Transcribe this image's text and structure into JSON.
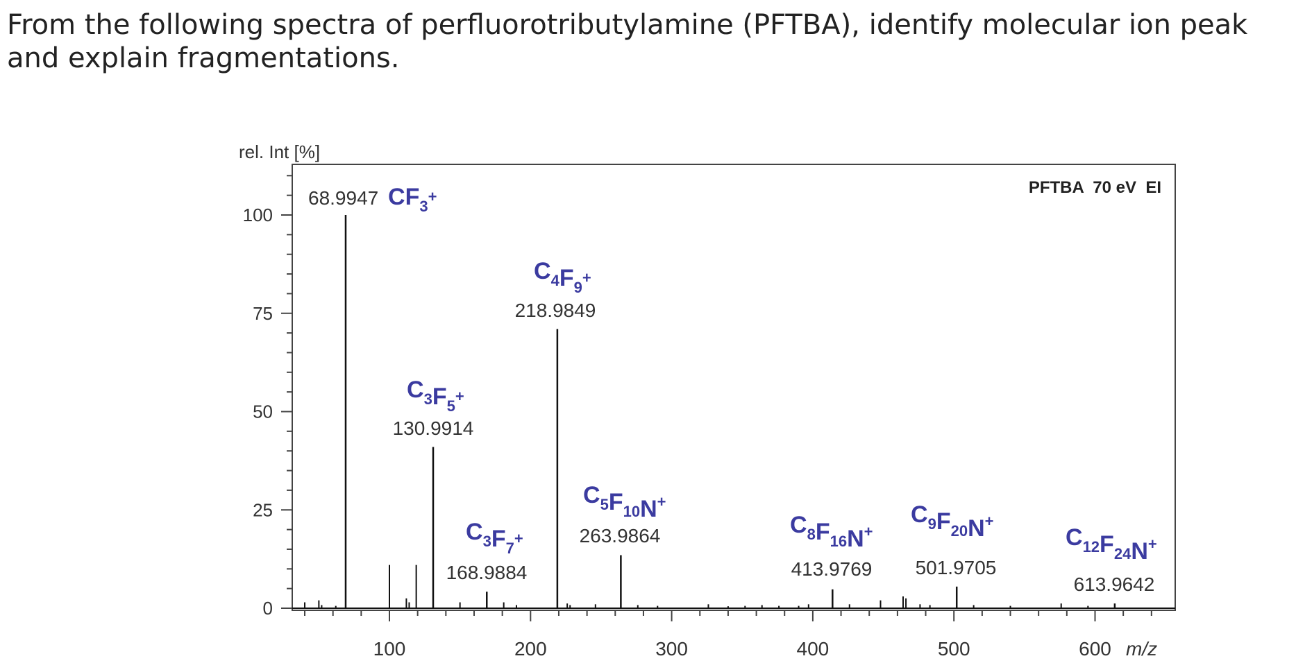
{
  "question": {
    "text": "From the  following spectra of perfluorotributylamine (PFTBA), identify molecular ion peak and explain fragmentations."
  },
  "colors": {
    "axis": "#444444",
    "bars": "#111111",
    "ion_label": "#3b3ba0"
  },
  "chart_data": {
    "type": "bar",
    "title": "",
    "annotation": "PFTBA  70 eV  EI",
    "xlabel": "m/z",
    "ylabel": "rel. Int [%]",
    "xlim": [
      30,
      640
    ],
    "ylim": [
      0,
      110
    ],
    "xticks": [
      100,
      200,
      300,
      400,
      500,
      600
    ],
    "yticks": [
      0,
      25,
      50,
      75,
      100
    ],
    "grid": false,
    "labeled_peaks": [
      {
        "mz": 68.9947,
        "intensity": 100,
        "mass_label": "68.9947",
        "ion": {
          "base": "CF",
          "atoms": [
            [
              "C",
              ""
            ],
            [
              "F",
              "3"
            ]
          ],
          "charge": "+"
        }
      },
      {
        "mz": 130.9914,
        "intensity": 41,
        "mass_label": "130.9914",
        "ion": {
          "atoms": [
            [
              "C",
              "3"
            ],
            [
              "F",
              "5"
            ]
          ],
          "charge": "+"
        }
      },
      {
        "mz": 168.9884,
        "intensity": 4.2,
        "mass_label": "168.9884",
        "ion": {
          "atoms": [
            [
              "C",
              "3"
            ],
            [
              "F",
              "7"
            ]
          ],
          "charge": "+"
        }
      },
      {
        "mz": 218.9849,
        "intensity": 71,
        "mass_label": "218.9849",
        "ion": {
          "atoms": [
            [
              "C",
              "4"
            ],
            [
              "F",
              "9"
            ]
          ],
          "charge": "+"
        }
      },
      {
        "mz": 263.9864,
        "intensity": 13.5,
        "mass_label": "263.9864",
        "ion": {
          "atoms": [
            [
              "C",
              "5"
            ],
            [
              "F",
              "10"
            ],
            [
              "N",
              ""
            ]
          ],
          "charge": "+"
        }
      },
      {
        "mz": 413.9769,
        "intensity": 4.8,
        "mass_label": "413.9769",
        "ion": {
          "atoms": [
            [
              "C",
              "8"
            ],
            [
              "F",
              "16"
            ],
            [
              "N",
              ""
            ]
          ],
          "charge": "+"
        }
      },
      {
        "mz": 501.9705,
        "intensity": 5.5,
        "mass_label": "501.9705",
        "ion": {
          "atoms": [
            [
              "C",
              "9"
            ],
            [
              "F",
              "20"
            ],
            [
              "N",
              ""
            ]
          ],
          "charge": "+"
        }
      },
      {
        "mz": 613.9642,
        "intensity": 1.2,
        "mass_label": "613.9642",
        "ion": {
          "atoms": [
            [
              "C",
              "12"
            ],
            [
              "F",
              "24"
            ],
            [
              "N",
              ""
            ]
          ],
          "charge": "+"
        }
      }
    ],
    "minor_peaks": [
      [
        40,
        1.5
      ],
      [
        50,
        2
      ],
      [
        52,
        0.8
      ],
      [
        62,
        0.6
      ],
      [
        100,
        11
      ],
      [
        112,
        2.5
      ],
      [
        114,
        1.5
      ],
      [
        119,
        11
      ],
      [
        150,
        1.5
      ],
      [
        181,
        1.5
      ],
      [
        190,
        0.8
      ],
      [
        226,
        1.2
      ],
      [
        228,
        0.8
      ],
      [
        246,
        1
      ],
      [
        276,
        0.8
      ],
      [
        290,
        0.6
      ],
      [
        326,
        1
      ],
      [
        340,
        0.5
      ],
      [
        352,
        0.6
      ],
      [
        364,
        0.8
      ],
      [
        376,
        0.6
      ],
      [
        390,
        0.6
      ],
      [
        397,
        1
      ],
      [
        426,
        1
      ],
      [
        448,
        2
      ],
      [
        464,
        3
      ],
      [
        466,
        2.5
      ],
      [
        476,
        1
      ],
      [
        483,
        0.8
      ],
      [
        514,
        0.8
      ],
      [
        540,
        0.6
      ],
      [
        576,
        1.2
      ],
      [
        595,
        0.6
      ]
    ]
  }
}
